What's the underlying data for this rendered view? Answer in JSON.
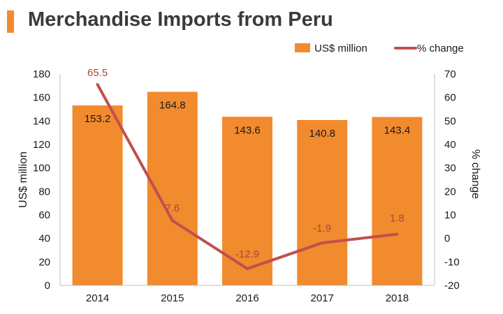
{
  "title": "Merchandise Imports from Peru",
  "colors": {
    "accent": "#f28a2e",
    "bar": "#f28a2e",
    "line": "#c0504d",
    "line_label": "#a14a3e"
  },
  "chart_data": {
    "type": "bar",
    "title": "Merchandise Imports from Peru",
    "categories": [
      "2014",
      "2015",
      "2016",
      "2017",
      "2018"
    ],
    "series": [
      {
        "name": "US$ million",
        "type": "bar",
        "axis": "left",
        "values": [
          153.2,
          164.8,
          143.6,
          140.8,
          143.4
        ]
      },
      {
        "name": "% change",
        "type": "line",
        "axis": "right",
        "values": [
          65.5,
          7.6,
          -12.9,
          -1.9,
          1.8
        ]
      }
    ],
    "ylabel": "US$ million",
    "ylabel_right": "% change",
    "ylim": [
      0,
      180
    ],
    "ylim_right": [
      -20,
      70
    ],
    "yticks": [
      0,
      20,
      40,
      60,
      80,
      100,
      120,
      140,
      160,
      180
    ],
    "yticks_right": [
      -20,
      -10,
      0,
      10,
      20,
      30,
      40,
      50,
      60,
      70
    ],
    "grid": false,
    "legend_position": "top-right"
  }
}
